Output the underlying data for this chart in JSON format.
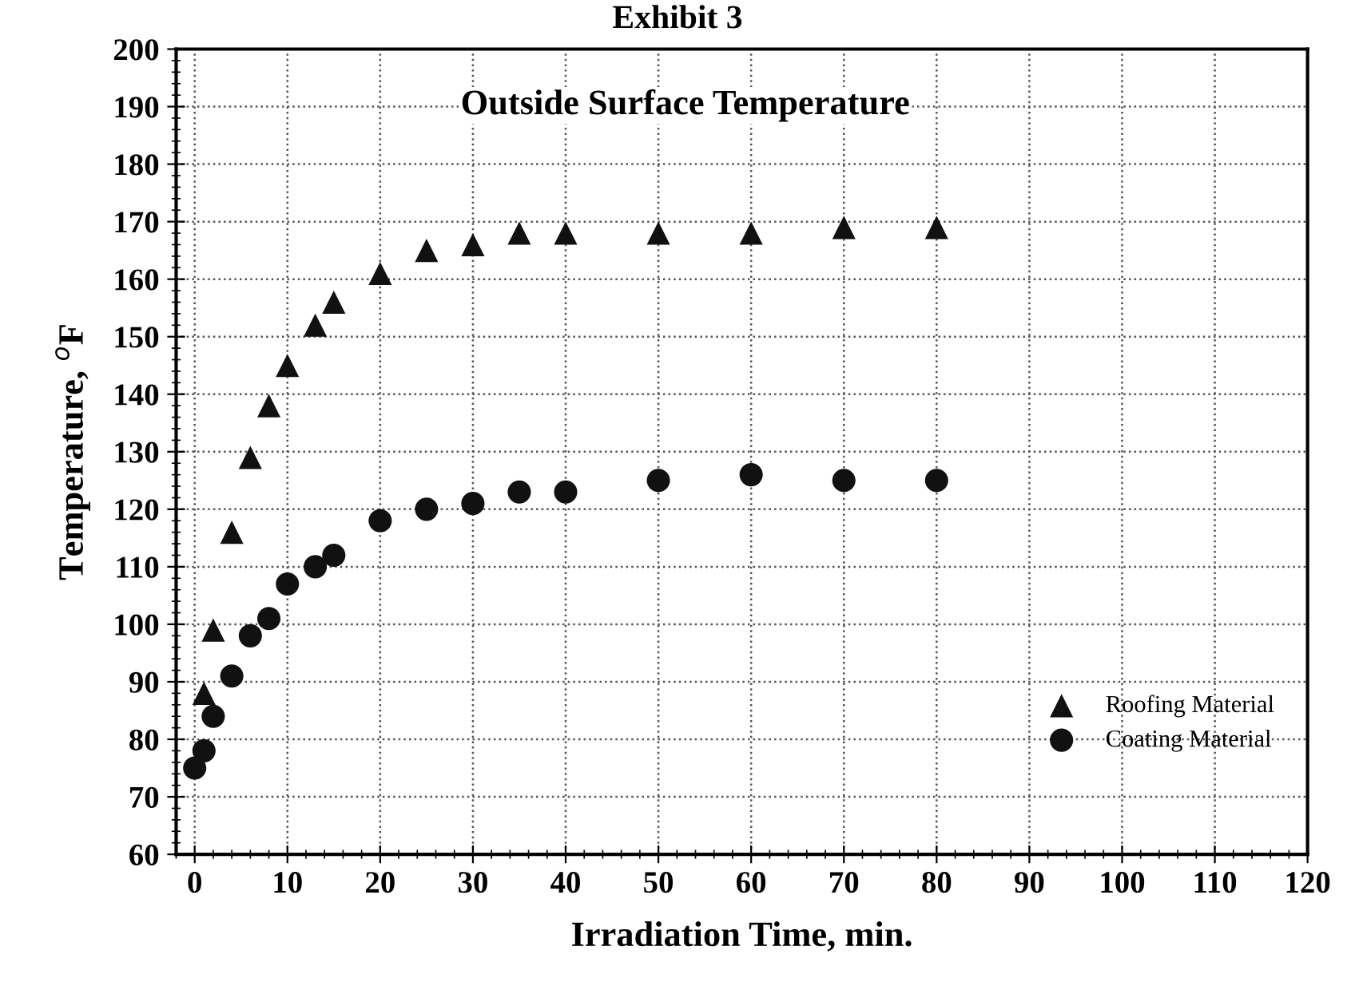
{
  "chart_data": {
    "type": "scatter",
    "title": "Exhibit 3",
    "subtitle": "Outside Surface Temperature",
    "xlabel": "Irradiation Time, min.",
    "ylabel": "Temperature, $^{o}$F",
    "xlim": [
      -2,
      120
    ],
    "xticks": [
      0,
      10,
      20,
      30,
      40,
      50,
      60,
      70,
      80,
      90,
      100,
      110,
      120
    ],
    "ylim": [
      60,
      200
    ],
    "yticks": [
      60,
      70,
      80,
      90,
      100,
      110,
      120,
      130,
      140,
      150,
      160,
      170,
      180,
      190,
      200
    ],
    "grid": true,
    "legend": "bottom right",
    "series": [
      {
        "name": "Roofing Material",
        "color": "#111111",
        "marker": "triangle",
        "x": [
          1,
          2,
          4,
          6,
          8,
          10,
          13,
          15,
          20,
          25,
          30,
          35,
          40,
          50,
          60,
          70,
          80
        ],
        "values": [
          88,
          99,
          116,
          129,
          138,
          145,
          152,
          156,
          161,
          165,
          166,
          168,
          168,
          168,
          168,
          169,
          169
        ]
      },
      {
        "name": "Coating Material",
        "color": "#111111",
        "marker": "circle",
        "x": [
          0,
          0.5,
          1,
          2,
          4,
          6,
          8,
          10,
          13,
          15,
          20,
          25,
          30,
          35,
          40,
          50,
          60,
          70,
          80
        ],
        "values": [
          75,
          null,
          78,
          84,
          91,
          98,
          101,
          107,
          110,
          112,
          118,
          120,
          121,
          123,
          123,
          125,
          126,
          125,
          125
        ]
      }
    ]
  }
}
